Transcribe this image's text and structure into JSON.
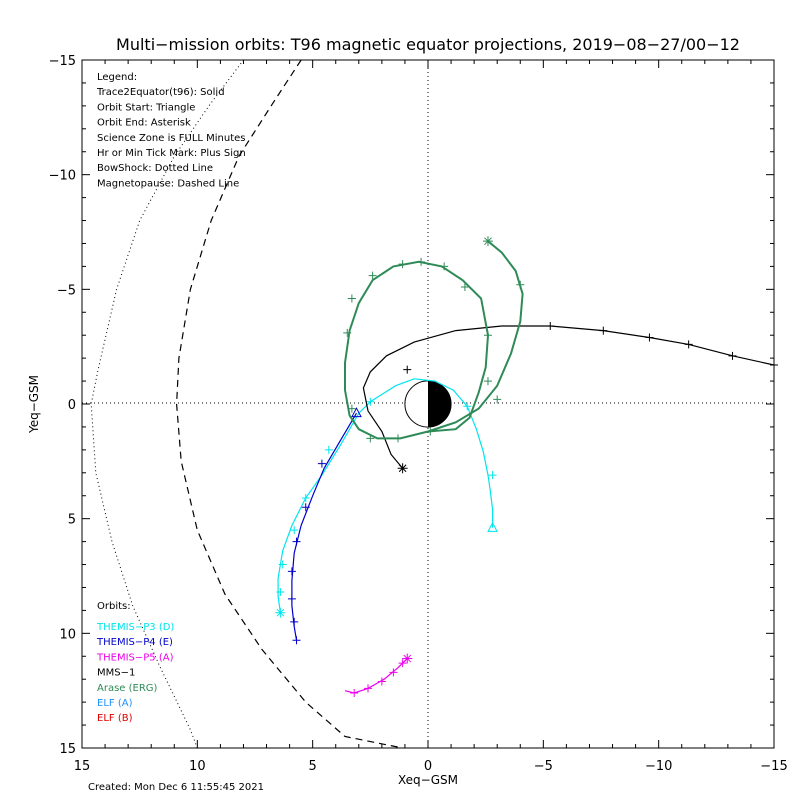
{
  "chart_data": {
    "type": "line",
    "title": "Multi−mission orbits: T96 magnetic equator projections, 2019−08−27/00−12",
    "xlabel": "Xeq−GSM",
    "ylabel": "Yeq−GSM",
    "xlim": [
      15,
      -15
    ],
    "ylim": [
      -15,
      15
    ],
    "x_ticks": [
      "15",
      "10",
      "5",
      "0",
      "−5",
      "−10",
      "−15"
    ],
    "y_ticks": [
      "−15",
      "−10",
      "−5",
      "0",
      "5",
      "10",
      "15"
    ],
    "created": "Created: Mon Dec  6 11:55:45 2021",
    "legend_lines": [
      "Legend:",
      "Trace2Equator(t96): Solid",
      "Orbit Start: Triangle",
      "Orbit End: Asterisk",
      "Science Zone is FULL Minutes",
      "Hr or Min Tick Mark: Plus Sign",
      "BowShock: Dotted Line",
      "Magnetopause: Dashed Line"
    ],
    "orbits_label": "Orbits:",
    "orbit_legend": [
      {
        "name": "THEMIS−P3 (D)",
        "color": "#00e5ee"
      },
      {
        "name": "THEMIS−P4 (E)",
        "color": "#0000cc"
      },
      {
        "name": "THEMIS−P5 (A)",
        "color": "#ee00ee"
      },
      {
        "name": "MMS−1",
        "color": "#000000"
      },
      {
        "name": "Arase (ERG)",
        "color": "#2e8b57"
      },
      {
        "name": "ELF (A)",
        "color": "#1e90ff"
      },
      {
        "name": "ELF (B)",
        "color": "#dd0000"
      }
    ],
    "bowshock": {
      "style": "dotted",
      "color": "#000000",
      "points": [
        [
          8,
          -15
        ],
        [
          9.5,
          -13
        ],
        [
          11,
          -10.8
        ],
        [
          12.5,
          -8
        ],
        [
          13.5,
          -5
        ],
        [
          14.3,
          -1.5
        ],
        [
          14.6,
          0
        ],
        [
          14.4,
          3
        ],
        [
          13.7,
          6
        ],
        [
          12.8,
          8.8
        ],
        [
          11.6,
          11.5
        ],
        [
          10.3,
          14.2
        ],
        [
          10,
          15
        ]
      ]
    },
    "magnetopause": {
      "style": "dashed",
      "color": "#000000",
      "points": [
        [
          5.5,
          -15
        ],
        [
          6.8,
          -13
        ],
        [
          8.2,
          -10.8
        ],
        [
          9.4,
          -8
        ],
        [
          10.3,
          -5
        ],
        [
          10.8,
          -2
        ],
        [
          10.9,
          0
        ],
        [
          10.7,
          2.5
        ],
        [
          10,
          5.5
        ],
        [
          8.8,
          8.3
        ],
        [
          7.2,
          10.7
        ],
        [
          5.3,
          13
        ],
        [
          3.6,
          14.5
        ],
        [
          1.1,
          15
        ]
      ]
    },
    "earth": {
      "radius": 1,
      "dayside_fill": "#ffffff",
      "nightside_fill": "#000000"
    },
    "series": [
      {
        "name": "THEMIS−P3 (D)",
        "color": "#00e5ee",
        "points": [
          [
            -2.8,
            5.4
          ],
          [
            -2.8,
            4.6
          ],
          [
            -2.7,
            3.8
          ],
          [
            -2.6,
            3.1
          ],
          [
            -2.4,
            2.1
          ],
          [
            -2.1,
            1.1
          ],
          [
            -1.7,
            0.1
          ],
          [
            -1.1,
            -0.6
          ],
          [
            -0.3,
            -1.0
          ],
          [
            0.6,
            -1.1
          ],
          [
            1.4,
            -0.8
          ],
          [
            2.5,
            -0.1
          ],
          [
            3.0,
            0.4
          ],
          [
            3.8,
            1.8
          ],
          [
            4.6,
            3.1
          ],
          [
            5.3,
            4.1
          ],
          [
            5.9,
            5.3
          ],
          [
            6.3,
            6.4
          ],
          [
            6.5,
            7.6
          ],
          [
            6.5,
            8.4
          ],
          [
            6.4,
            9.1
          ]
        ],
        "ticks": [
          [
            -2.8,
            3.1
          ],
          [
            -1.7,
            0.1
          ],
          [
            2.5,
            -0.1
          ],
          [
            4.3,
            2.0
          ],
          [
            5.3,
            4.1
          ],
          [
            5.8,
            5.5
          ],
          [
            6.3,
            7.0
          ],
          [
            6.4,
            8.2
          ]
        ],
        "start": [
          -2.8,
          5.4
        ],
        "end": [
          6.4,
          9.1
        ]
      },
      {
        "name": "THEMIS−P4 (E)",
        "color": "#0000cc",
        "points": [
          [
            3.1,
            0.4
          ],
          [
            3.8,
            1.6
          ],
          [
            4.5,
            2.8
          ],
          [
            5.0,
            4.0
          ],
          [
            5.5,
            5.3
          ],
          [
            5.8,
            6.5
          ],
          [
            5.9,
            7.7
          ],
          [
            5.9,
            8.8
          ],
          [
            5.8,
            9.7
          ],
          [
            5.7,
            10.3
          ]
        ],
        "ticks": [
          [
            4.6,
            2.6
          ],
          [
            5.3,
            4.5
          ],
          [
            5.7,
            6.0
          ],
          [
            5.9,
            7.3
          ],
          [
            5.9,
            8.5
          ],
          [
            5.8,
            9.5
          ],
          [
            5.7,
            10.3
          ]
        ],
        "start": [
          3.1,
          0.4
        ],
        "end": null
      },
      {
        "name": "THEMIS−P5 (A)",
        "color": "#ee00ee",
        "points": [
          [
            3.6,
            12.5
          ],
          [
            3.2,
            12.6
          ],
          [
            2.6,
            12.4
          ],
          [
            1.9,
            12.0
          ],
          [
            1.3,
            11.5
          ],
          [
            0.9,
            11.1
          ]
        ],
        "ticks": [
          [
            3.2,
            12.6
          ],
          [
            2.6,
            12.4
          ],
          [
            2.0,
            12.1
          ],
          [
            1.5,
            11.7
          ],
          [
            1.1,
            11.3
          ]
        ],
        "start": null,
        "end": [
          0.9,
          11.1
        ]
      },
      {
        "name": "MMS−1",
        "color": "#000000",
        "points": [
          [
            -15,
            -1.7
          ],
          [
            -13.2,
            -2.1
          ],
          [
            -11.3,
            -2.6
          ],
          [
            -9.6,
            -2.9
          ],
          [
            -7.6,
            -3.2
          ],
          [
            -5.3,
            -3.4
          ],
          [
            -3.2,
            -3.4
          ],
          [
            -1.2,
            -3.2
          ],
          [
            0.6,
            -2.7
          ],
          [
            1.8,
            -2.1
          ],
          [
            2.5,
            -1.4
          ],
          [
            2.8,
            -0.7
          ],
          [
            2.6,
            0.3
          ],
          [
            2.0,
            1.2
          ],
          [
            1.6,
            2.2
          ],
          [
            1.1,
            2.8
          ]
        ],
        "ticks": [
          [
            -15,
            -1.7
          ],
          [
            -13.2,
            -2.1
          ],
          [
            -11.3,
            -2.6
          ],
          [
            -9.6,
            -2.9
          ],
          [
            -7.6,
            -3.2
          ],
          [
            -5.3,
            -3.4
          ],
          [
            0.9,
            -1.5
          ]
        ],
        "start": null,
        "end": [
          1.1,
          2.8
        ]
      },
      {
        "name": "Arase (ERG)",
        "color": "#2e8b57",
        "points": [
          [
            -2.6,
            -7.1
          ],
          [
            -3.2,
            -6.6
          ],
          [
            -3.8,
            -5.8
          ],
          [
            -4.1,
            -4.8
          ],
          [
            -4.0,
            -3.6
          ],
          [
            -3.6,
            -2.2
          ],
          [
            -3.0,
            -0.8
          ],
          [
            -2.2,
            0.2
          ],
          [
            -1.2,
            0.8
          ],
          [
            0.0,
            1.2
          ],
          [
            1.2,
            1.5
          ],
          [
            2.2,
            1.5
          ],
          [
            3.0,
            1.1
          ],
          [
            3.4,
            0.5
          ],
          [
            3.6,
            -0.6
          ],
          [
            3.6,
            -1.8
          ],
          [
            3.4,
            -3.2
          ],
          [
            3.0,
            -4.4
          ],
          [
            2.4,
            -5.4
          ],
          [
            1.5,
            -6.0
          ],
          [
            0.4,
            -6.2
          ],
          [
            -0.6,
            -6.0
          ],
          [
            -1.5,
            -5.4
          ],
          [
            -2.3,
            -4.6
          ],
          [
            -2.6,
            -3.0
          ],
          [
            -2.5,
            -1.6
          ],
          [
            -2.2,
            -0.5
          ],
          [
            -1.8,
            0.6
          ],
          [
            -1.2,
            1.1
          ],
          [
            0.0,
            1.2
          ]
        ],
        "ticks": [
          [
            -4.0,
            -5.2
          ],
          [
            -3.0,
            -0.2
          ],
          [
            -0.1,
            1.2
          ],
          [
            1.3,
            1.5
          ],
          [
            2.5,
            1.5
          ],
          [
            3.3,
            0.2
          ],
          [
            3.5,
            -3.1
          ],
          [
            3.3,
            -4.6
          ],
          [
            2.4,
            -5.6
          ],
          [
            1.1,
            -6.1
          ],
          [
            0.3,
            -6.2
          ],
          [
            -0.7,
            -6.0
          ],
          [
            -1.6,
            -5.1
          ],
          [
            -2.6,
            -3.0
          ],
          [
            -2.6,
            -1.0
          ]
        ],
        "start": null,
        "end": [
          -2.6,
          -7.1
        ]
      }
    ]
  }
}
